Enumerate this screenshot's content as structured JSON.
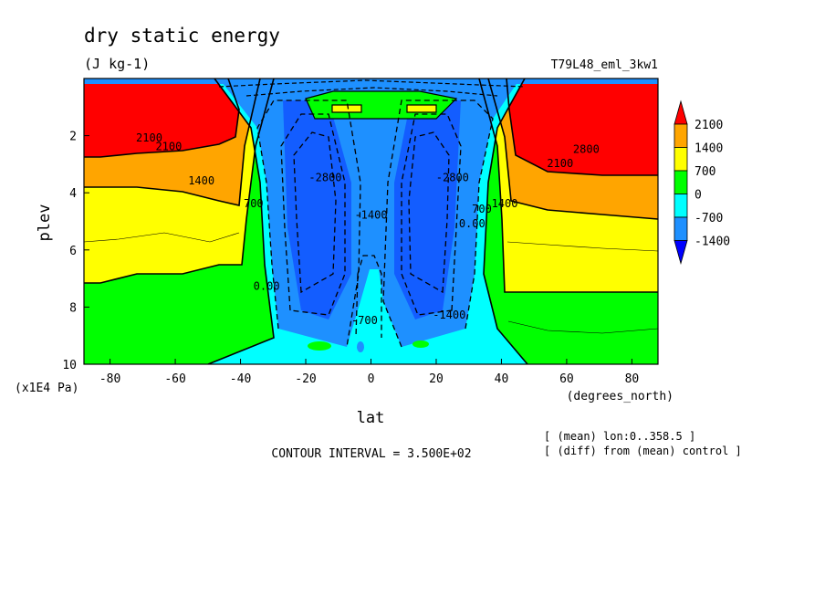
{
  "chart_data": {
    "type": "heatmap",
    "title": "dry static energy",
    "units": "(J kg-1)",
    "run_label": "T79L48_eml_3kw1",
    "xlabel": "lat",
    "x_units": "(degrees_north)",
    "ylabel": "plev",
    "y_units": "(x1E4 Pa)",
    "xlim": [
      -88,
      88
    ],
    "ylim": [
      10,
      0
    ],
    "x_ticks": [
      -80,
      -60,
      -40,
      -20,
      0,
      20,
      40,
      60,
      80
    ],
    "y_ticks": [
      2,
      4,
      6,
      8,
      10
    ],
    "contour_interval_text": "CONTOUR INTERVAL = 3.500E+02",
    "notes": [
      "[ (mean) lon:0..358.5 ]",
      "[ (diff) from (mean) control ]"
    ],
    "colorbar": {
      "levels": [
        2100,
        1400,
        700,
        0,
        -700,
        -1400
      ],
      "colors": [
        "#ff0000",
        "#ffa500",
        "#ffff00",
        "#00ff00",
        "#00ffff",
        "#1e90ff",
        "#0000ff"
      ],
      "extend": "both"
    },
    "contour_labels": [
      {
        "text": "2100",
        "lat": -68,
        "plev": 2.2
      },
      {
        "text": "2100",
        "lat": -62,
        "plev": 2.5
      },
      {
        "text": "2100",
        "lat": 58,
        "plev": 3.1
      },
      {
        "text": "2800",
        "lat": 66,
        "plev": 2.6
      },
      {
        "text": "1400",
        "lat": -52,
        "plev": 3.7
      },
      {
        "text": "1400",
        "lat": 41,
        "plev": 4.5
      },
      {
        "text": "700",
        "lat": -36,
        "plev": 4.5
      },
      {
        "text": "700",
        "lat": 34,
        "plev": 4.7
      },
      {
        "text": "0.00",
        "lat": -32,
        "plev": 7.4
      },
      {
        "text": "0.00",
        "lat": 31,
        "plev": 5.2
      },
      {
        "text": "-1400",
        "lat": 0,
        "plev": 4.9
      },
      {
        "text": "-2800",
        "lat": -14,
        "plev": 3.6
      },
      {
        "text": "-2800",
        "lat": 25,
        "plev": 3.6
      },
      {
        "text": "-700",
        "lat": -2,
        "plev": 8.6
      },
      {
        "text": "-1400",
        "lat": 24,
        "plev": 8.4
      }
    ]
  }
}
